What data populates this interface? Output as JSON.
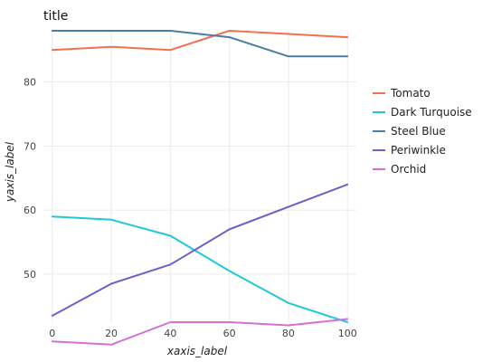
{
  "chart_data": {
    "type": "line",
    "title": "title",
    "xlabel": "xaxis_label",
    "ylabel": "yaxis_label",
    "x": [
      0,
      20,
      40,
      60,
      80,
      100
    ],
    "xlim": [
      -3,
      103
    ],
    "ylim": [
      42.5,
      88
    ],
    "xticks": [
      0,
      20,
      40,
      60,
      80,
      100
    ],
    "yticks": [
      50,
      60,
      70,
      80
    ],
    "grid": true,
    "legend_position": "right",
    "series": [
      {
        "name": "Tomato",
        "color": "#f2704f",
        "values": [
          85,
          85.5,
          85,
          88,
          87.5,
          87
        ]
      },
      {
        "name": "Dark Turquoise",
        "color": "#1ec8db",
        "values": [
          59,
          58.5,
          56,
          50.5,
          45.5,
          42.5
        ]
      },
      {
        "name": "Steel Blue",
        "color": "#4a7da5",
        "values": [
          88,
          88,
          88,
          87,
          84,
          84
        ]
      },
      {
        "name": "Periwinkle",
        "color": "#6d5fc8",
        "values": [
          43.5,
          48.5,
          51.5,
          57,
          60.5,
          64
        ]
      },
      {
        "name": "Orchid",
        "color": "#d56fd3",
        "values": [
          39.5,
          39,
          42.5,
          42.5,
          42,
          43
        ]
      }
    ]
  }
}
